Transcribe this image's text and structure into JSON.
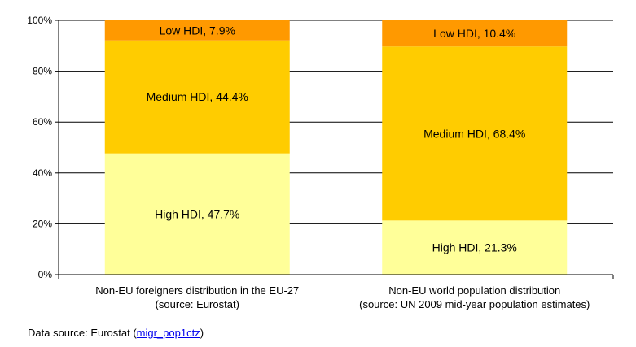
{
  "chart_data": {
    "type": "bar",
    "stacked": true,
    "percent": true,
    "categories": [
      [
        "Non-EU foreigners distribution in the EU-27",
        "(source: Eurostat)"
      ],
      [
        "Non-EU world population distribution",
        "(source: UN 2009 mid-year population estimates)"
      ]
    ],
    "series": [
      {
        "name": "High HDI",
        "values": [
          47.7,
          21.3
        ],
        "color": "#ffff99",
        "labels": [
          "High HDI, 47.7%",
          "High HDI, 21.3%"
        ]
      },
      {
        "name": "Medium HDI",
        "values": [
          44.4,
          68.4
        ],
        "color": "#ffcc00",
        "labels": [
          "Medium HDI, 44.4%",
          "Medium HDI, 68.4%"
        ]
      },
      {
        "name": "Low HDI",
        "values": [
          7.9,
          10.4
        ],
        "color": "#ff9900",
        "labels": [
          "Low HDI, 7.9%",
          "Low HDI, 10.4%"
        ]
      }
    ],
    "ylim": [
      0,
      100
    ],
    "yticks": [
      "0%",
      "20%",
      "40%",
      "60%",
      "80%",
      "100%"
    ],
    "ytick_values": [
      0,
      20,
      40,
      60,
      80,
      100
    ],
    "grid": true,
    "title": "",
    "xlabel": "",
    "ylabel": ""
  },
  "footer": {
    "prefix": "Data source: Eurostat (",
    "link_text": "migr_pop1ctz",
    "suffix": ")"
  }
}
